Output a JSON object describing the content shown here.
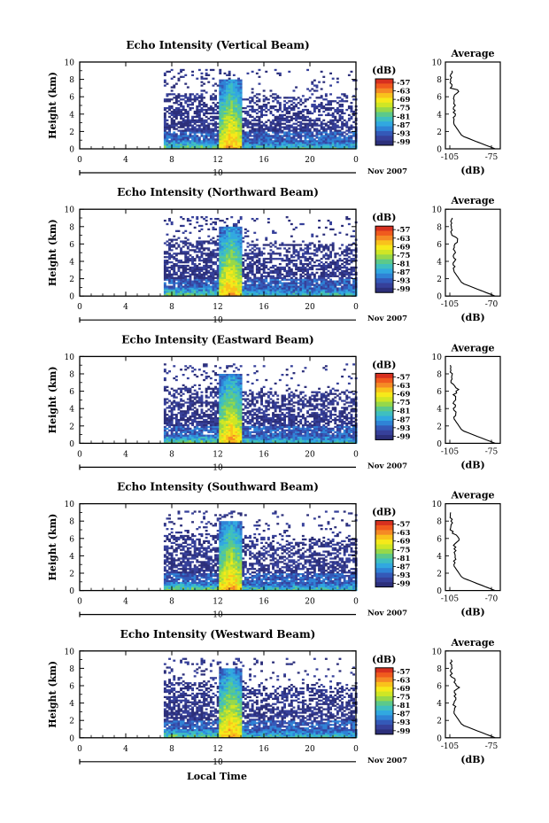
{
  "figure": {
    "x_title": "Local Time",
    "date_label": "Nov 2007",
    "secondary_axis_label": "10"
  },
  "colorscale": {
    "unit": "(dB)",
    "labels": [
      "-57",
      "-63",
      "-69",
      "-75",
      "-81",
      "-87",
      "-93",
      "-99"
    ],
    "colors": [
      "#d7301f",
      "#f05a1e",
      "#f58a25",
      "#f9c21c",
      "#f6e91a",
      "#cfe625",
      "#96d84a",
      "#5cc98a",
      "#3fbfc0",
      "#31a8e0",
      "#2f83d6",
      "#3459b8",
      "#36409a",
      "#2c2f7a"
    ]
  },
  "chart_data": [
    {
      "type": "heatmap",
      "title": "Echo Intensity (Vertical Beam)",
      "ylabel": "Height (km)",
      "xlabel": "Local Time",
      "xlim": [
        0,
        24
      ],
      "ylim": [
        0,
        10
      ],
      "xticks": [
        "0",
        "4",
        "8",
        "12",
        "16",
        "20",
        "0"
      ],
      "yticks": [
        "0",
        "2",
        "4",
        "6",
        "8",
        "10"
      ],
      "colorbar_label": "(dB)",
      "colorbar_ticks": [
        "-57",
        "-63",
        "-69",
        "-75",
        "-81",
        "-87",
        "-93",
        "-99"
      ],
      "data_coverage_hours": [
        7.3,
        24
      ],
      "inset": {
        "type": "line",
        "title": "Average",
        "xlabel": "(dB)",
        "xticks": [
          "-105",
          "-75"
        ],
        "ylim": [
          0,
          10
        ],
        "yticks": [
          "0",
          "2",
          "4",
          "6",
          "8",
          "10"
        ]
      }
    },
    {
      "type": "heatmap",
      "title": "Echo Intensity (Northward Beam)",
      "ylabel": "Height (km)",
      "xlabel": "Local Time",
      "xlim": [
        0,
        24
      ],
      "ylim": [
        0,
        10
      ],
      "xticks": [
        "0",
        "4",
        "8",
        "12",
        "16",
        "20",
        "0"
      ],
      "yticks": [
        "0",
        "2",
        "4",
        "6",
        "8",
        "10"
      ],
      "colorbar_label": "(dB)",
      "colorbar_ticks": [
        "-57",
        "-63",
        "-69",
        "-75",
        "-81",
        "-87",
        "-93",
        "-99"
      ],
      "data_coverage_hours": [
        7.3,
        24
      ],
      "inset": {
        "type": "line",
        "title": "Average",
        "xlabel": "(dB)",
        "xticks": [
          "-105",
          "-70"
        ],
        "ylim": [
          0,
          10
        ],
        "yticks": [
          "0",
          "2",
          "4",
          "6",
          "8",
          "10"
        ]
      }
    },
    {
      "type": "heatmap",
      "title": "Echo Intensity (Eastward Beam)",
      "ylabel": "Height (km)",
      "xlabel": "Local Time",
      "xlim": [
        0,
        24
      ],
      "ylim": [
        0,
        10
      ],
      "xticks": [
        "0",
        "4",
        "8",
        "12",
        "16",
        "20",
        "0"
      ],
      "yticks": [
        "0",
        "2",
        "4",
        "6",
        "8",
        "10"
      ],
      "colorbar_label": "(dB)",
      "colorbar_ticks": [
        "-57",
        "-63",
        "-69",
        "-75",
        "-81",
        "-87",
        "-93",
        "-99"
      ],
      "data_coverage_hours": [
        7.3,
        24
      ],
      "inset": {
        "type": "line",
        "title": "Average",
        "xlabel": "(dB)",
        "xticks": [
          "-105",
          "-75"
        ],
        "ylim": [
          0,
          10
        ],
        "yticks": [
          "0",
          "2",
          "4",
          "6",
          "8",
          "10"
        ]
      }
    },
    {
      "type": "heatmap",
      "title": "Echo Intensity (Southward Beam)",
      "ylabel": "Height (km)",
      "xlabel": "Local Time",
      "xlim": [
        0,
        24
      ],
      "ylim": [
        0,
        10
      ],
      "xticks": [
        "0",
        "4",
        "8",
        "12",
        "16",
        "20",
        "0"
      ],
      "yticks": [
        "0",
        "2",
        "4",
        "6",
        "8",
        "10"
      ],
      "colorbar_label": "(dB)",
      "colorbar_ticks": [
        "-57",
        "-63",
        "-69",
        "-75",
        "-81",
        "-87",
        "-93",
        "-99"
      ],
      "data_coverage_hours": [
        7.3,
        24
      ],
      "inset": {
        "type": "line",
        "title": "Average",
        "xlabel": "(dB)",
        "xticks": [
          "-105",
          "-70"
        ],
        "ylim": [
          0,
          10
        ],
        "yticks": [
          "0",
          "2",
          "4",
          "6",
          "8",
          "10"
        ]
      }
    },
    {
      "type": "heatmap",
      "title": "Echo Intensity (Westward Beam)",
      "ylabel": "Height (km)",
      "xlabel": "Local Time",
      "xlim": [
        0,
        24
      ],
      "ylim": [
        0,
        10
      ],
      "xticks": [
        "0",
        "4",
        "8",
        "12",
        "16",
        "20",
        "0"
      ],
      "yticks": [
        "0",
        "2",
        "4",
        "6",
        "8",
        "10"
      ],
      "colorbar_label": "(dB)",
      "colorbar_ticks": [
        "-57",
        "-63",
        "-69",
        "-75",
        "-81",
        "-87",
        "-93",
        "-99"
      ],
      "data_coverage_hours": [
        7.3,
        24
      ],
      "inset": {
        "type": "line",
        "title": "Average",
        "xlabel": "(dB)",
        "xticks": [
          "-105",
          "-75"
        ],
        "ylim": [
          0,
          10
        ],
        "yticks": [
          "0",
          "2",
          "4",
          "6",
          "8",
          "10"
        ]
      }
    }
  ]
}
